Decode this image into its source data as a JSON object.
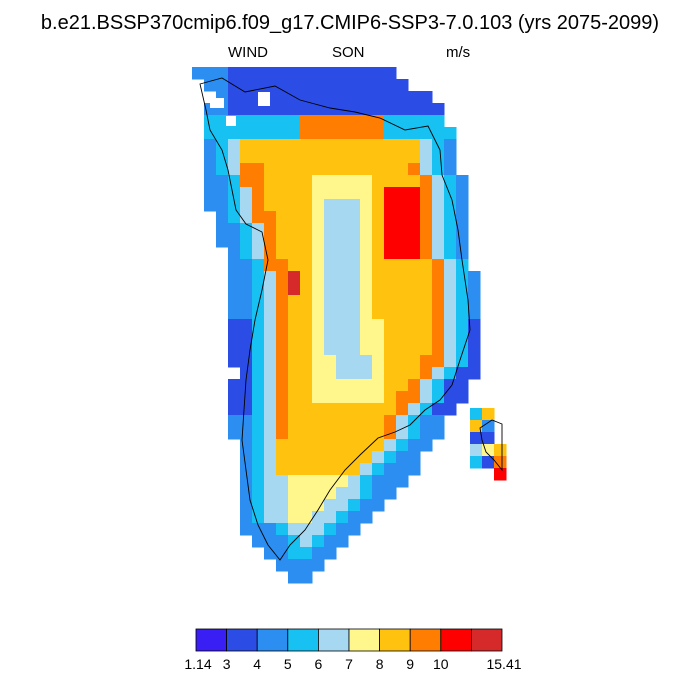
{
  "title": "b.e21.BSSP370cmip6.f09_g17.CMIP6-SSP3-7.0.103 (yrs 2075-2099)",
  "subtitle": {
    "variable": "WIND",
    "season": "SON",
    "units": "m/s"
  },
  "colorbar": {
    "colors": [
      "#3a1ff5",
      "#2b4de6",
      "#2b8ef0",
      "#17c2f2",
      "#a6d8f2",
      "#fff68c",
      "#ffc20f",
      "#ff7d00",
      "#ff0000",
      "#d62a2a"
    ],
    "labels": [
      "1.14",
      "3",
      "4",
      "5",
      "6",
      "7",
      "8",
      "9",
      "10",
      "15.41"
    ]
  },
  "chart_data": {
    "type": "heatmap",
    "title": "b.e21.BSSP370cmip6.f09_g17.CMIP6-SSP3-7.0.103 (yrs 2075-2099)",
    "variable": "WIND",
    "season": "SON",
    "units": "m/s",
    "region": "Greenland",
    "value_range": [
      1.14,
      15.41
    ],
    "contour_levels": [
      3,
      4,
      5,
      6,
      7,
      8,
      9,
      10
    ],
    "grid": "off",
    "legend_placement": "bottom"
  }
}
